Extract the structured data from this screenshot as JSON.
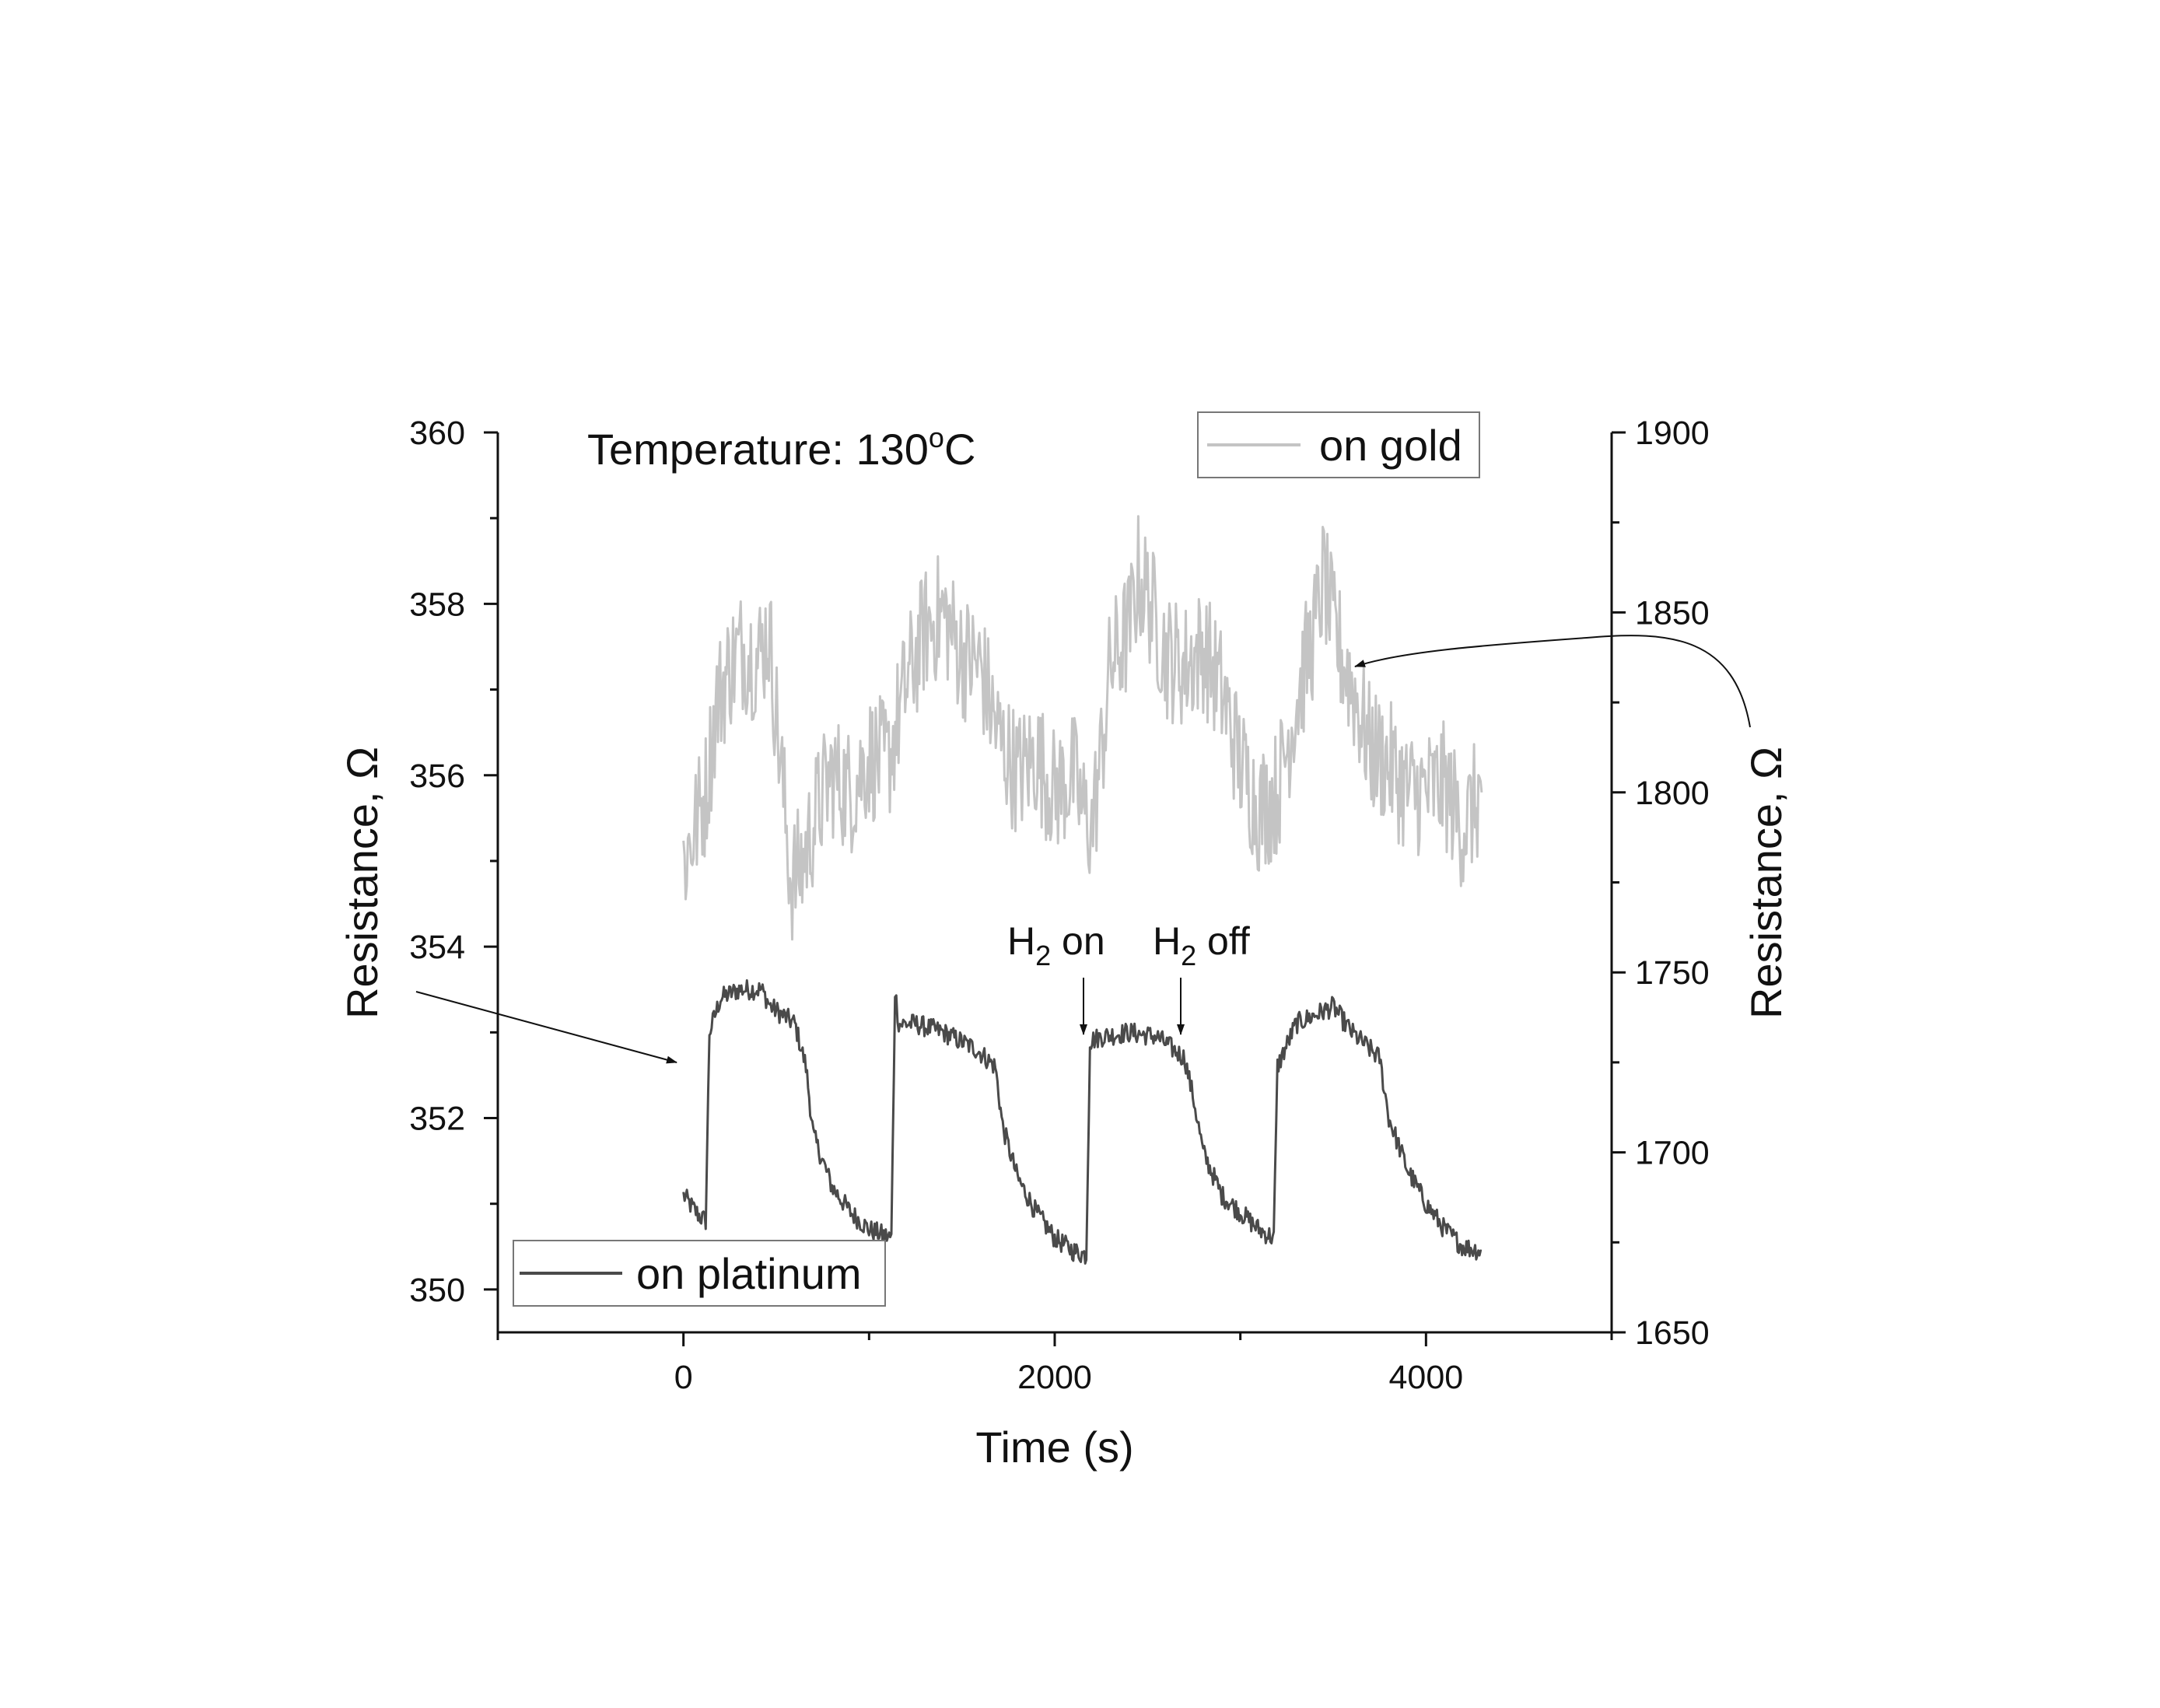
{
  "chart_data": {
    "type": "line",
    "title": "",
    "annotation_temperature": "Temperature: 130",
    "annotation_temperature_unit": "C",
    "annotation_temperature_sup": "o",
    "xlabel": "Time (s)",
    "ylabel_left": "Resistance, Ω",
    "ylabel_right": "Resistance, Ω",
    "xlim": [
      -1000,
      5000
    ],
    "ylim_left": [
      349.5,
      360
    ],
    "ylim_right": [
      1650,
      1900
    ],
    "x_ticks": [
      "0",
      "2000",
      "4000"
    ],
    "y_left_ticks": [
      "350",
      "352",
      "354",
      "356",
      "358",
      "360"
    ],
    "y_right_ticks": [
      "1650",
      "1700",
      "1750",
      "1800",
      "1850",
      "1900"
    ],
    "grid": false,
    "series": [
      {
        "name": "on platinum",
        "axis": "left",
        "color": "#4a4a4a",
        "points": [
          [
            0,
            351.1
          ],
          [
            50,
            350.95
          ],
          [
            90,
            350.85
          ],
          [
            120,
            350.8
          ],
          [
            140,
            353.0
          ],
          [
            200,
            353.4
          ],
          [
            300,
            353.5
          ],
          [
            420,
            353.5
          ],
          [
            470,
            353.3
          ],
          [
            600,
            353.1
          ],
          [
            660,
            352.6
          ],
          [
            700,
            351.8
          ],
          [
            800,
            351.2
          ],
          [
            900,
            350.9
          ],
          [
            1000,
            350.7
          ],
          [
            1120,
            350.6
          ],
          [
            1140,
            353.5
          ],
          [
            1160,
            353.1
          ],
          [
            1250,
            353.1
          ],
          [
            1400,
            353.0
          ],
          [
            1580,
            352.8
          ],
          [
            1680,
            352.6
          ],
          [
            1720,
            351.9
          ],
          [
            1800,
            351.3
          ],
          [
            1900,
            350.9
          ],
          [
            2000,
            350.6
          ],
          [
            2100,
            350.45
          ],
          [
            2170,
            350.4
          ],
          [
            2190,
            352.9
          ],
          [
            2250,
            352.95
          ],
          [
            2400,
            353.0
          ],
          [
            2550,
            352.95
          ],
          [
            2700,
            352.7
          ],
          [
            2750,
            352.2
          ],
          [
            2800,
            351.6
          ],
          [
            2900,
            351.1
          ],
          [
            3000,
            350.9
          ],
          [
            3100,
            350.7
          ],
          [
            3180,
            350.6
          ],
          [
            3200,
            352.6
          ],
          [
            3300,
            353.1
          ],
          [
            3400,
            353.2
          ],
          [
            3500,
            353.3
          ],
          [
            3600,
            353.0
          ],
          [
            3750,
            352.7
          ],
          [
            3800,
            352.0
          ],
          [
            3900,
            351.4
          ],
          [
            4000,
            351.0
          ],
          [
            4100,
            350.7
          ],
          [
            4200,
            350.5
          ],
          [
            4300,
            350.45
          ]
        ]
      },
      {
        "name": "on gold",
        "axis": "right",
        "color": "#c4c4c4",
        "points": [
          [
            0,
            1780
          ],
          [
            60,
            1790
          ],
          [
            120,
            1800
          ],
          [
            180,
            1825
          ],
          [
            250,
            1835
          ],
          [
            320,
            1840
          ],
          [
            400,
            1837
          ],
          [
            460,
            1845
          ],
          [
            520,
            1810
          ],
          [
            580,
            1775
          ],
          [
            640,
            1780
          ],
          [
            720,
            1795
          ],
          [
            800,
            1805
          ],
          [
            900,
            1800
          ],
          [
            1000,
            1810
          ],
          [
            1100,
            1808
          ],
          [
            1200,
            1830
          ],
          [
            1300,
            1845
          ],
          [
            1400,
            1850
          ],
          [
            1500,
            1838
          ],
          [
            1600,
            1835
          ],
          [
            1700,
            1815
          ],
          [
            1800,
            1805
          ],
          [
            1900,
            1810
          ],
          [
            2000,
            1800
          ],
          [
            2100,
            1805
          ],
          [
            2150,
            1795
          ],
          [
            2200,
            1790
          ],
          [
            2250,
            1810
          ],
          [
            2300,
            1835
          ],
          [
            2400,
            1845
          ],
          [
            2450,
            1860
          ],
          [
            2500,
            1855
          ],
          [
            2600,
            1838
          ],
          [
            2700,
            1835
          ],
          [
            2800,
            1840
          ],
          [
            2900,
            1828
          ],
          [
            3000,
            1808
          ],
          [
            3100,
            1795
          ],
          [
            3200,
            1800
          ],
          [
            3300,
            1825
          ],
          [
            3400,
            1845
          ],
          [
            3450,
            1860
          ],
          [
            3500,
            1845
          ],
          [
            3600,
            1830
          ],
          [
            3700,
            1812
          ],
          [
            3800,
            1808
          ],
          [
            3900,
            1800
          ],
          [
            4000,
            1800
          ],
          [
            4100,
            1802
          ],
          [
            4200,
            1790
          ],
          [
            4300,
            1800
          ]
        ]
      }
    ],
    "legend": [
      {
        "label": "on gold",
        "placement": "top-right"
      },
      {
        "label": "on platinum",
        "placement": "bottom-left"
      }
    ],
    "annotations": [
      {
        "text_main": "H",
        "text_sub": "2",
        "text_rest": " on",
        "x": 2200,
        "y": 352.8
      },
      {
        "text_main": "H",
        "text_sub": "2",
        "text_rest": " off",
        "x": 2700,
        "y": 352.8
      }
    ]
  }
}
